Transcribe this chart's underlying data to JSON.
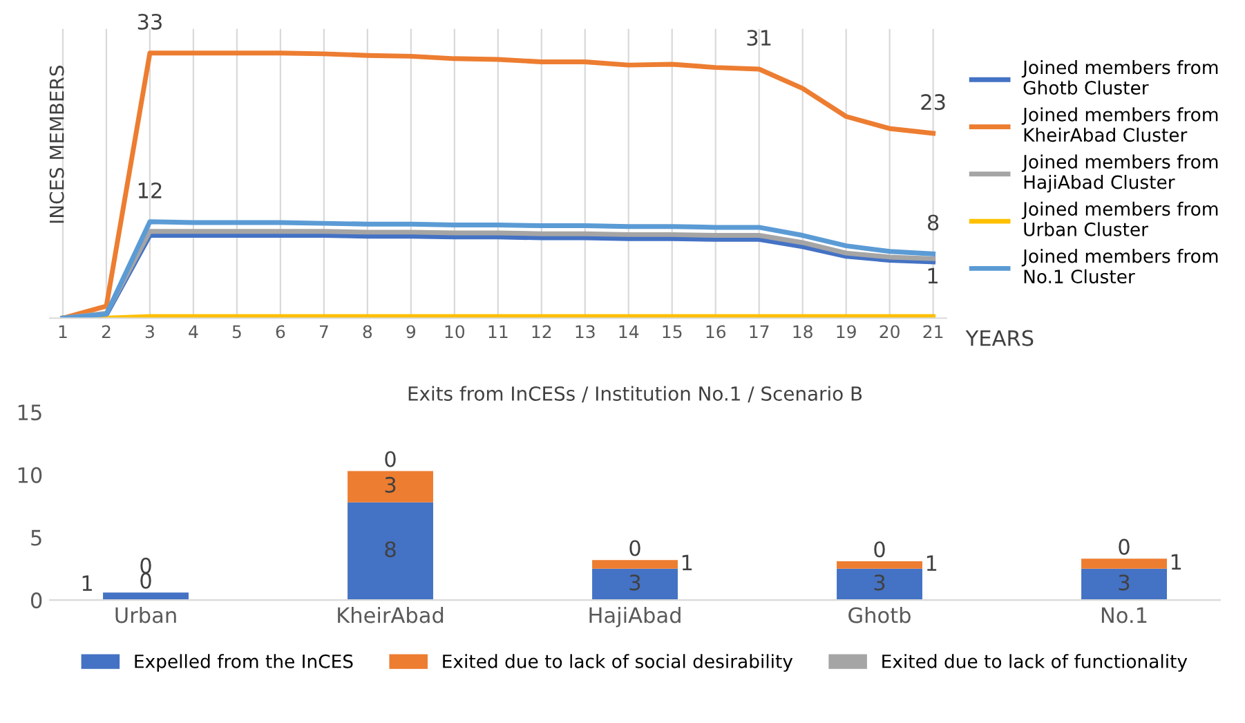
{
  "chart_data": [
    {
      "type": "line",
      "xlabel": "YEARS",
      "ylabel": "INCES MEMBERS",
      "x": [
        1,
        2,
        3,
        4,
        5,
        6,
        7,
        8,
        9,
        10,
        11,
        12,
        13,
        14,
        15,
        16,
        17,
        18,
        19,
        20,
        21
      ],
      "xlim": [
        0.7,
        21.3
      ],
      "xticks": [
        1,
        2,
        3,
        4,
        5,
        6,
        7,
        8,
        9,
        10,
        11,
        12,
        13,
        14,
        15,
        16,
        17,
        18,
        19,
        20,
        21
      ],
      "ylim": [
        0,
        36
      ],
      "tick_labels": "x",
      "grid": "x",
      "legend": "right",
      "marker": "none",
      "line_style": "solid",
      "series": [
        {
          "name": "Joined members from Ghotb Cluster",
          "color": "#4472c4",
          "values": [
            0,
            0.4,
            10.3,
            10.3,
            10.3,
            10.3,
            10.3,
            10.2,
            10.2,
            10.1,
            10.1,
            10.0,
            10.0,
            9.9,
            9.9,
            9.8,
            9.8,
            8.9,
            7.7,
            7.2,
            7.0
          ]
        },
        {
          "name": "Joined members from KheirAbad Cluster",
          "color": "#ed7d31",
          "values": [
            0,
            1.5,
            33,
            33,
            33,
            33,
            32.9,
            32.7,
            32.6,
            32.3,
            32.2,
            31.9,
            31.9,
            31.5,
            31.6,
            31.2,
            31,
            28.6,
            25.1,
            23.6,
            23
          ],
          "value_labels": [
            null,
            null,
            "33",
            null,
            null,
            null,
            null,
            null,
            null,
            null,
            null,
            null,
            null,
            null,
            null,
            null,
            "31",
            null,
            null,
            null,
            "23"
          ]
        },
        {
          "name": "Joined members from HajiAbad Cluster",
          "color": "#a5a5a5",
          "values": [
            0,
            0.6,
            10.8,
            10.8,
            10.8,
            10.8,
            10.8,
            10.7,
            10.7,
            10.6,
            10.6,
            10.5,
            10.5,
            10.4,
            10.4,
            10.3,
            10.3,
            9.4,
            8.1,
            7.6,
            7.4
          ]
        },
        {
          "name": "Joined members from Urban Cluster",
          "color": "#ffc000",
          "values": [
            0,
            0,
            0.2,
            0.2,
            0.2,
            0.2,
            0.2,
            0.2,
            0.2,
            0.2,
            0.2,
            0.2,
            0.2,
            0.2,
            0.2,
            0.2,
            0.2,
            0.2,
            0.2,
            0.2,
            0.2
          ]
        },
        {
          "name": "Joined members from No.1 Cluster",
          "color": "#5b9bd5",
          "values": [
            0,
            0.5,
            12,
            11.9,
            11.9,
            11.9,
            11.8,
            11.7,
            11.7,
            11.6,
            11.6,
            11.5,
            11.5,
            11.4,
            11.4,
            11.3,
            11.3,
            10.3,
            9.0,
            8.3,
            8
          ],
          "value_labels": [
            null,
            null,
            "12",
            null,
            null,
            null,
            null,
            null,
            null,
            null,
            null,
            null,
            null,
            null,
            null,
            null,
            null,
            null,
            null,
            null,
            "8"
          ]
        }
      ],
      "annotations": [
        "1"
      ]
    },
    {
      "type": "bar",
      "title": "Exits from InCESs / Institution No.1 / Scenario B",
      "categories": [
        "Urban",
        "KheirAbad",
        "HajiAbad",
        "Ghotb",
        "No.1"
      ],
      "stacked": true,
      "ylim": [
        0,
        15
      ],
      "yticks": [
        0,
        5,
        10,
        15
      ],
      "grid": false,
      "legend": "bottom",
      "series": [
        {
          "name": "Expelled from the InCES",
          "color": "#4472c4",
          "values": [
            0.6,
            7.8,
            2.5,
            2.5,
            2.5
          ],
          "value_labels": [
            "1",
            "8",
            "3",
            "3",
            "3"
          ]
        },
        {
          "name": "Exited due to lack of social desirability",
          "color": "#ed7d31",
          "values": [
            0,
            2.5,
            0.7,
            0.6,
            0.8
          ],
          "value_labels": [
            "0",
            "3",
            "1",
            "1",
            "1"
          ]
        },
        {
          "name": "Exited due to lack of functionality",
          "color": "#a5a5a5",
          "values": [
            0,
            0,
            0,
            0,
            0
          ],
          "value_labels": [
            "0",
            "0",
            "0",
            "0",
            "0"
          ]
        }
      ]
    }
  ]
}
